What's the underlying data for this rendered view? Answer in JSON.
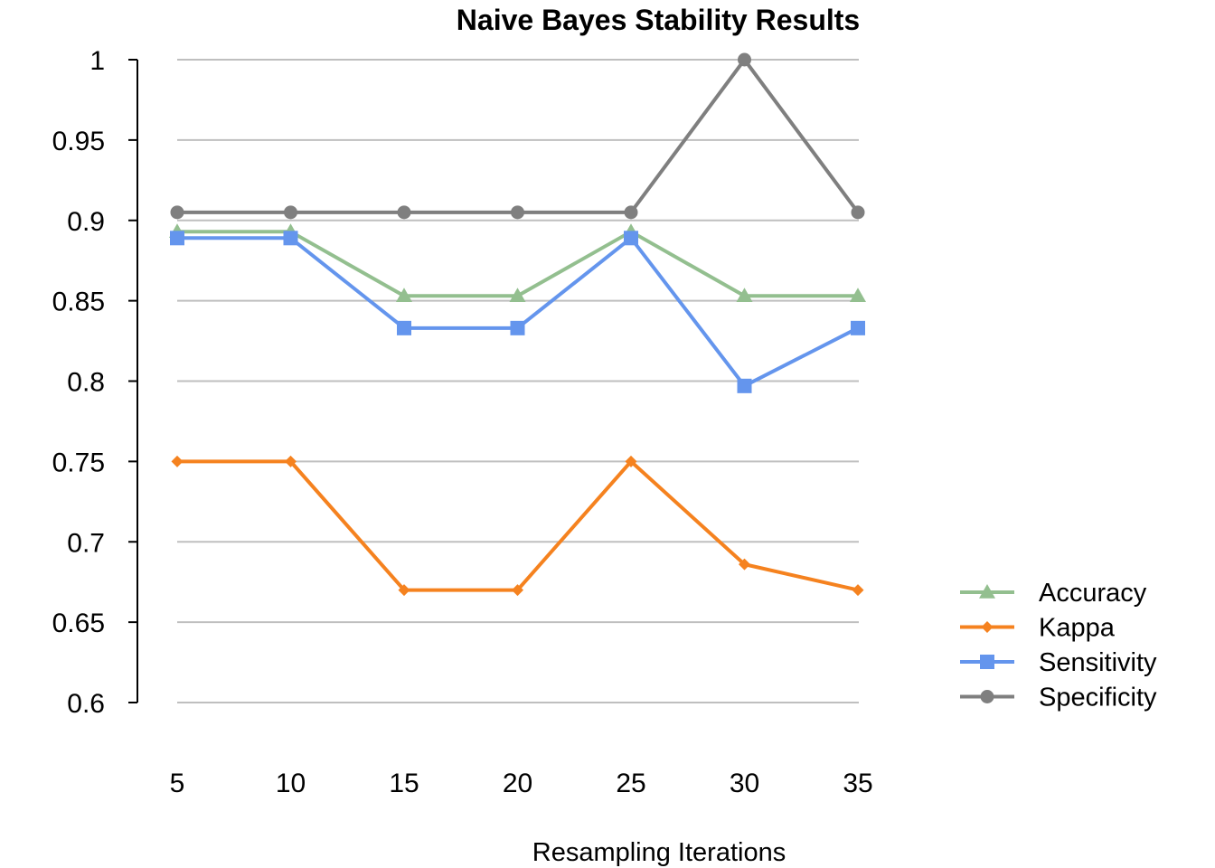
{
  "chart_data": {
    "type": "line",
    "title": "Naive Bayes Stability Results",
    "xlabel": "Resampling Iterations",
    "ylabel": "",
    "categories": [
      "5",
      "10",
      "15",
      "20",
      "25",
      "30",
      "35"
    ],
    "ylim": [
      0.6,
      1.0
    ],
    "yticks": [
      "0.6",
      "0.65",
      "0.7",
      "0.75",
      "0.8",
      "0.85",
      "0.9",
      "0.95",
      "1"
    ],
    "grid": true,
    "legend_position": "right",
    "series": [
      {
        "name": "Accuracy",
        "color": "#93BF8F",
        "marker": "triangle",
        "values": [
          0.893,
          0.893,
          0.853,
          0.853,
          0.893,
          0.853,
          0.853
        ]
      },
      {
        "name": "Kappa",
        "color": "#F5821F",
        "marker": "diamond",
        "values": [
          0.75,
          0.75,
          0.67,
          0.67,
          0.75,
          0.686,
          0.67
        ]
      },
      {
        "name": "Sensitivity",
        "color": "#6495ED",
        "marker": "square",
        "values": [
          0.889,
          0.889,
          0.833,
          0.833,
          0.889,
          0.797,
          0.833
        ]
      },
      {
        "name": "Specificity",
        "color": "#7F7F7F",
        "marker": "circle",
        "values": [
          0.905,
          0.905,
          0.905,
          0.905,
          0.905,
          1.0,
          0.905
        ]
      }
    ]
  }
}
